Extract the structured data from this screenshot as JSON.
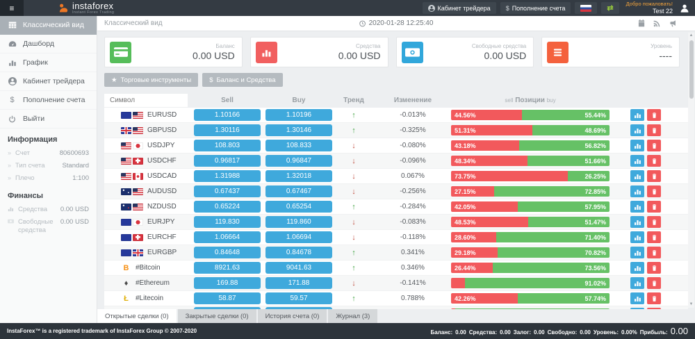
{
  "topbar": {
    "logo_name": "instaforex",
    "logo_subtitle": "Instant Forex Trading",
    "trader_cabinet_label": "Кабинет трейдера",
    "deposit_label": "Пополнение счета",
    "deposit_prefix": "$",
    "welcome_label": "Добро пожаловать!",
    "username": "Test 22",
    "language_flag": "russian-flag",
    "icons": [
      "hamburger-icon",
      "person-circle-icon",
      "dollar-icon",
      "exchange-icon",
      "avatar-icon"
    ]
  },
  "sidebar": {
    "items": [
      {
        "label": "Классический вид",
        "icon": "table-icon",
        "active": true
      },
      {
        "label": "Дашборд",
        "icon": "tachometer-icon",
        "active": false
      },
      {
        "label": "График",
        "icon": "bar-chart-icon",
        "active": false
      },
      {
        "label": "Кабинет трейдера",
        "icon": "person-circle-icon",
        "active": false
      },
      {
        "label": "Пополнение счета",
        "icon": "dollar-icon",
        "active": false
      },
      {
        "label": "Выйти",
        "icon": "power-icon",
        "active": false
      }
    ],
    "info_title": "Информация",
    "info_rows": [
      {
        "label": "Счет",
        "value": "80600693"
      },
      {
        "label": "Тип счета",
        "value": "Standard"
      },
      {
        "label": "Плечо",
        "value": "1:100"
      }
    ],
    "finance_title": "Финансы",
    "finance_rows": [
      {
        "label": "Средства",
        "value": "0.00 USD",
        "icon": "chart-mini-icon"
      },
      {
        "label": "Свободные средства",
        "value": "0.00 USD",
        "icon": "banknote-mini-icon"
      }
    ]
  },
  "header": {
    "title": "Классический вид",
    "datetime": "2020-01-28 12:25:40",
    "icons": [
      "clock-icon",
      "calendar-icon",
      "rss-icon",
      "megaphone-icon"
    ]
  },
  "cards": [
    {
      "label": "Баланс",
      "value": "0.00 USD",
      "color": "#56bd5a",
      "icon": "credit-card-icon"
    },
    {
      "label": "Средства",
      "value": "0.00 USD",
      "color": "#f15f5f",
      "icon": "bar-chart-icon"
    },
    {
      "label": "Свободные средства",
      "value": "0.00 USD",
      "color": "#31a7db",
      "icon": "banknote-icon"
    },
    {
      "label": "Уровень",
      "value": "----",
      "color": "#f4613d",
      "icon": "list-icon"
    }
  ],
  "toolbar": {
    "instruments_label": "Торговые инструменты",
    "instruments_icon": "star-icon",
    "balance_label": "Баланс и Средства",
    "balance_icon": "dollar-icon"
  },
  "table": {
    "symbol_placeholder": "Символ",
    "headers": {
      "sell": "Sell",
      "buy": "Buy",
      "trend": "Тренд",
      "change": "Изменение"
    },
    "positions_header": {
      "left": "sell",
      "center": "Позиции",
      "right": "buy"
    },
    "rows": [
      {
        "symbol": "EURUSD",
        "flags": [
          "eu",
          "us"
        ],
        "sell": "1.10166",
        "buy": "1.10196",
        "trend": "up",
        "change": "-0.013%",
        "sell_pct": 44.56,
        "buy_pct": 55.44,
        "sell_label": "44.56%",
        "buy_label": "55.44%"
      },
      {
        "symbol": "GBPUSD",
        "flags": [
          "gb",
          "us"
        ],
        "sell": "1.30116",
        "buy": "1.30146",
        "trend": "up",
        "change": "-0.325%",
        "sell_pct": 51.31,
        "buy_pct": 48.69,
        "sell_label": "51.31%",
        "buy_label": "48.69%"
      },
      {
        "symbol": "USDJPY",
        "flags": [
          "us",
          "jp"
        ],
        "sell": "108.803",
        "buy": "108.833",
        "trend": "down",
        "change": "-0.080%",
        "sell_pct": 43.18,
        "buy_pct": 56.82,
        "sell_label": "43.18%",
        "buy_label": "56.82%"
      },
      {
        "symbol": "USDCHF",
        "flags": [
          "us",
          "ch"
        ],
        "sell": "0.96817",
        "buy": "0.96847",
        "trend": "down",
        "change": "-0.096%",
        "sell_pct": 48.34,
        "buy_pct": 51.66,
        "sell_label": "48.34%",
        "buy_label": "51.66%"
      },
      {
        "symbol": "USDCAD",
        "flags": [
          "us",
          "ca"
        ],
        "sell": "1.31988",
        "buy": "1.32018",
        "trend": "down",
        "change": "0.067%",
        "sell_pct": 73.75,
        "buy_pct": 26.25,
        "sell_label": "73.75%",
        "buy_label": "26.25%"
      },
      {
        "symbol": "AUDUSD",
        "flags": [
          "au",
          "us"
        ],
        "sell": "0.67437",
        "buy": "0.67467",
        "trend": "down",
        "change": "-0.256%",
        "sell_pct": 27.15,
        "buy_pct": 72.85,
        "sell_label": "27.15%",
        "buy_label": "72.85%"
      },
      {
        "symbol": "NZDUSD",
        "flags": [
          "nz",
          "us"
        ],
        "sell": "0.65224",
        "buy": "0.65254",
        "trend": "up",
        "change": "-0.284%",
        "sell_pct": 42.05,
        "buy_pct": 57.95,
        "sell_label": "42.05%",
        "buy_label": "57.95%"
      },
      {
        "symbol": "EURJPY",
        "flags": [
          "eu",
          "jp"
        ],
        "sell": "119.830",
        "buy": "119.860",
        "trend": "down",
        "change": "-0.083%",
        "sell_pct": 48.53,
        "buy_pct": 51.47,
        "sell_label": "48.53%",
        "buy_label": "51.47%"
      },
      {
        "symbol": "EURCHF",
        "flags": [
          "eu",
          "ch"
        ],
        "sell": "1.06664",
        "buy": "1.06694",
        "trend": "down",
        "change": "-0.118%",
        "sell_pct": 28.6,
        "buy_pct": 71.4,
        "sell_label": "28.60%",
        "buy_label": "71.40%"
      },
      {
        "symbol": "EURGBP",
        "flags": [
          "eu",
          "gb"
        ],
        "sell": "0.84648",
        "buy": "0.84678",
        "trend": "up",
        "change": "0.341%",
        "sell_pct": 29.18,
        "buy_pct": 70.82,
        "sell_label": "29.18%",
        "buy_label": "70.82%"
      },
      {
        "symbol": "#Bitcoin",
        "crypto": "B",
        "crypto_color": "#f7931a",
        "sell": "8921.63",
        "buy": "9041.63",
        "trend": "up",
        "change": "0.346%",
        "sell_pct": 26.44,
        "buy_pct": 73.56,
        "sell_label": "26.44%",
        "buy_label": "73.56%"
      },
      {
        "symbol": "#Ethereum",
        "crypto": "♦",
        "crypto_color": "#4a4a4a",
        "sell": "169.88",
        "buy": "171.88",
        "trend": "down",
        "change": "-0.141%",
        "sell_pct": 8.98,
        "buy_pct": 91.02,
        "sell_label": "",
        "buy_label": "91.02%"
      },
      {
        "symbol": "#Litecoin",
        "crypto": "Ł",
        "crypto_color": "#e1b10c",
        "sell": "58.87",
        "buy": "59.57",
        "trend": "up",
        "change": "0.788%",
        "sell_pct": 42.26,
        "buy_pct": 57.74,
        "sell_label": "42.26%",
        "buy_label": "57.74%"
      },
      {
        "symbol": "",
        "flags": [],
        "sell": "",
        "buy": "",
        "trend": "",
        "change": "",
        "sell_pct": 2.5,
        "buy_pct": 97.5,
        "sell_label": "",
        "buy_label": ""
      }
    ]
  },
  "tabs": [
    {
      "label": "Открытые сделки (0)",
      "active": true
    },
    {
      "label": "Закрытые сделки (0)",
      "active": false
    },
    {
      "label": "История счета (0)",
      "active": false
    },
    {
      "label": "Журнал (3)",
      "active": false
    }
  ],
  "footer": {
    "trademark": "InstaForex™ is a registered trademark of InstaForex Group © 2007-2020",
    "stats": [
      {
        "label": "Баланс:",
        "value": "0.00"
      },
      {
        "label": "Средства:",
        "value": "0.00"
      },
      {
        "label": "Залог:",
        "value": "0.00"
      },
      {
        "label": "Свободно:",
        "value": "0.00"
      },
      {
        "label": "Уровень:",
        "value": "0.00%"
      },
      {
        "label": "Прибыль:",
        "value": "0.00"
      }
    ]
  },
  "colors": {
    "accent_blue": "#3fa9dc",
    "sell_red": "#f2595c",
    "buy_green": "#66c166",
    "topbar_dark": "#343b43",
    "footer_dark": "#2d343b"
  }
}
